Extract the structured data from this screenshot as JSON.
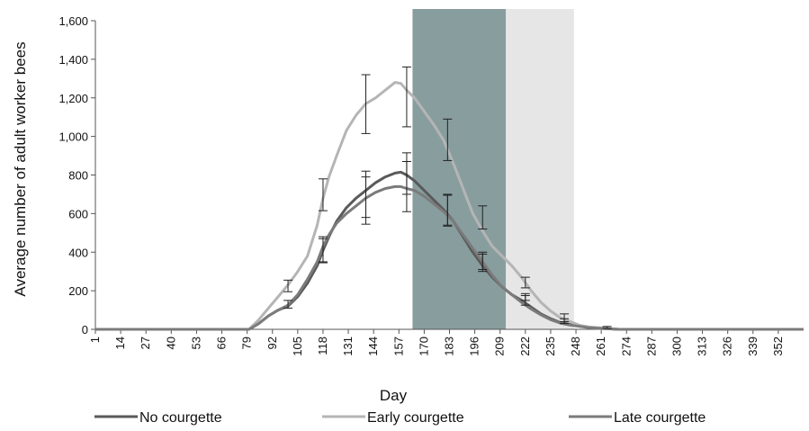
{
  "chart_data": {
    "type": "line",
    "xlabel": "Day",
    "ylabel": "Average number of adult worker bees",
    "ylim": [
      0,
      1600
    ],
    "yticks": [
      0,
      200,
      400,
      600,
      800,
      1000,
      1200,
      1400,
      1600
    ],
    "ytick_labels": [
      "0",
      "200",
      "400",
      "600",
      "800",
      "1,000",
      "1,200",
      "1,400",
      "1,600"
    ],
    "xlim": [
      1,
      365
    ],
    "xticks": [
      1,
      14,
      27,
      40,
      53,
      66,
      79,
      92,
      105,
      118,
      131,
      144,
      157,
      170,
      183,
      196,
      209,
      222,
      235,
      248,
      261,
      274,
      287,
      300,
      313,
      326,
      339,
      352
    ],
    "grid": false,
    "legend_position": "bottom",
    "shaded_regions": [
      {
        "x_start": 164,
        "x_end": 212,
        "color": "#889d9e"
      },
      {
        "x_start": 212,
        "x_end": 247,
        "color": "#e6e6e6"
      }
    ],
    "series": [
      {
        "name": "No courgette",
        "color": "#5a5a5a",
        "points": [
          [
            1,
            0
          ],
          [
            80,
            0
          ],
          [
            85,
            30
          ],
          [
            90,
            70
          ],
          [
            95,
            100
          ],
          [
            100,
            120
          ],
          [
            105,
            170
          ],
          [
            110,
            240
          ],
          [
            115,
            330
          ],
          [
            118,
            410
          ],
          [
            121,
            480
          ],
          [
            125,
            560
          ],
          [
            130,
            630
          ],
          [
            135,
            680
          ],
          [
            140,
            720
          ],
          [
            145,
            760
          ],
          [
            150,
            790
          ],
          [
            155,
            810
          ],
          [
            158,
            815
          ],
          [
            161,
            800
          ],
          [
            165,
            770
          ],
          [
            170,
            720
          ],
          [
            175,
            670
          ],
          [
            180,
            620
          ],
          [
            185,
            560
          ],
          [
            190,
            480
          ],
          [
            195,
            400
          ],
          [
            200,
            330
          ],
          [
            205,
            270
          ],
          [
            210,
            220
          ],
          [
            215,
            180
          ],
          [
            220,
            150
          ],
          [
            225,
            115
          ],
          [
            230,
            80
          ],
          [
            235,
            55
          ],
          [
            240,
            35
          ],
          [
            245,
            25
          ],
          [
            250,
            20
          ],
          [
            255,
            10
          ],
          [
            260,
            5
          ],
          [
            270,
            0
          ],
          [
            365,
            0
          ]
        ]
      },
      {
        "name": "Early courgette",
        "color": "#b5b5b5",
        "points": [
          [
            1,
            0
          ],
          [
            80,
            0
          ],
          [
            85,
            50
          ],
          [
            90,
            110
          ],
          [
            95,
            170
          ],
          [
            100,
            230
          ],
          [
            105,
            300
          ],
          [
            110,
            380
          ],
          [
            115,
            540
          ],
          [
            118,
            680
          ],
          [
            121,
            790
          ],
          [
            125,
            900
          ],
          [
            130,
            1030
          ],
          [
            135,
            1110
          ],
          [
            140,
            1170
          ],
          [
            145,
            1200
          ],
          [
            150,
            1240
          ],
          [
            155,
            1280
          ],
          [
            158,
            1275
          ],
          [
            161,
            1240
          ],
          [
            165,
            1200
          ],
          [
            170,
            1130
          ],
          [
            175,
            1060
          ],
          [
            180,
            980
          ],
          [
            185,
            860
          ],
          [
            190,
            730
          ],
          [
            195,
            600
          ],
          [
            200,
            510
          ],
          [
            205,
            430
          ],
          [
            210,
            380
          ],
          [
            215,
            330
          ],
          [
            220,
            270
          ],
          [
            225,
            200
          ],
          [
            230,
            140
          ],
          [
            235,
            95
          ],
          [
            240,
            60
          ],
          [
            245,
            40
          ],
          [
            250,
            20
          ],
          [
            255,
            12
          ],
          [
            260,
            8
          ],
          [
            270,
            0
          ],
          [
            365,
            0
          ]
        ]
      },
      {
        "name": "Late courgette",
        "color": "#7b7b7b",
        "points": [
          [
            1,
            0
          ],
          [
            80,
            0
          ],
          [
            85,
            30
          ],
          [
            90,
            70
          ],
          [
            95,
            100
          ],
          [
            100,
            125
          ],
          [
            105,
            180
          ],
          [
            110,
            260
          ],
          [
            115,
            350
          ],
          [
            118,
            430
          ],
          [
            121,
            490
          ],
          [
            125,
            550
          ],
          [
            130,
            600
          ],
          [
            135,
            640
          ],
          [
            140,
            680
          ],
          [
            145,
            710
          ],
          [
            150,
            730
          ],
          [
            155,
            740
          ],
          [
            158,
            740
          ],
          [
            161,
            730
          ],
          [
            165,
            720
          ],
          [
            170,
            690
          ],
          [
            175,
            650
          ],
          [
            180,
            610
          ],
          [
            185,
            560
          ],
          [
            190,
            490
          ],
          [
            195,
            420
          ],
          [
            200,
            350
          ],
          [
            205,
            280
          ],
          [
            210,
            220
          ],
          [
            215,
            180
          ],
          [
            220,
            140
          ],
          [
            225,
            105
          ],
          [
            230,
            75
          ],
          [
            235,
            50
          ],
          [
            240,
            32
          ],
          [
            245,
            22
          ],
          [
            250,
            15
          ],
          [
            255,
            8
          ],
          [
            260,
            5
          ],
          [
            270,
            0
          ],
          [
            365,
            0
          ]
        ]
      }
    ],
    "error_bars": [
      {
        "x": 100,
        "low": 110,
        "high": 150
      },
      {
        "x": 100,
        "low": 195,
        "high": 255
      },
      {
        "x": 118,
        "low": 345,
        "high": 470
      },
      {
        "x": 118,
        "low": 350,
        "high": 480
      },
      {
        "x": 118,
        "low": 615,
        "high": 780
      },
      {
        "x": 140,
        "low": 545,
        "high": 820
      },
      {
        "x": 140,
        "low": 580,
        "high": 790
      },
      {
        "x": 140,
        "low": 1015,
        "high": 1320
      },
      {
        "x": 161,
        "low": 610,
        "high": 870
      },
      {
        "x": 161,
        "low": 700,
        "high": 915
      },
      {
        "x": 161,
        "low": 1050,
        "high": 1360
      },
      {
        "x": 182,
        "low": 535,
        "high": 700
      },
      {
        "x": 182,
        "low": 540,
        "high": 695
      },
      {
        "x": 182,
        "low": 875,
        "high": 1090
      },
      {
        "x": 200,
        "low": 300,
        "high": 400
      },
      {
        "x": 200,
        "low": 310,
        "high": 390
      },
      {
        "x": 200,
        "low": 520,
        "high": 640
      },
      {
        "x": 222,
        "low": 150,
        "high": 185
      },
      {
        "x": 222,
        "low": 125,
        "high": 175
      },
      {
        "x": 222,
        "low": 215,
        "high": 270
      },
      {
        "x": 242,
        "low": 30,
        "high": 55
      },
      {
        "x": 242,
        "low": 40,
        "high": 80
      },
      {
        "x": 264,
        "low": 5,
        "high": 15
      }
    ]
  }
}
